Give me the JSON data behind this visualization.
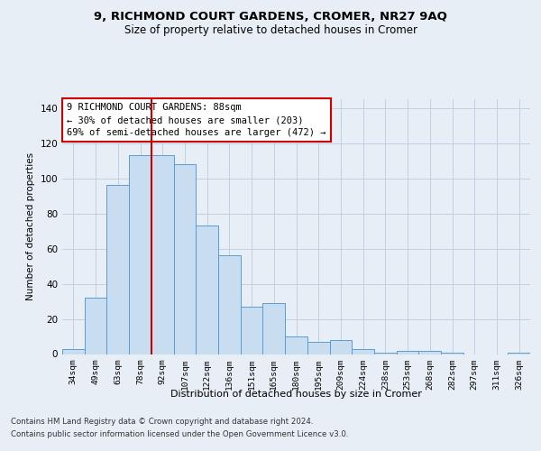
{
  "title1": "9, RICHMOND COURT GARDENS, CROMER, NR27 9AQ",
  "title2": "Size of property relative to detached houses in Cromer",
  "xlabel": "Distribution of detached houses by size in Cromer",
  "ylabel": "Number of detached properties",
  "categories": [
    "34sqm",
    "49sqm",
    "63sqm",
    "78sqm",
    "92sqm",
    "107sqm",
    "122sqm",
    "136sqm",
    "151sqm",
    "165sqm",
    "180sqm",
    "195sqm",
    "209sqm",
    "224sqm",
    "238sqm",
    "253sqm",
    "268sqm",
    "282sqm",
    "297sqm",
    "311sqm",
    "326sqm"
  ],
  "values": [
    3,
    32,
    96,
    113,
    113,
    108,
    73,
    56,
    27,
    29,
    10,
    7,
    8,
    3,
    1,
    2,
    2,
    1,
    0,
    0,
    1
  ],
  "bar_color": "#c8ddf0",
  "bar_edge_color": "#5b9bd5",
  "vline_color": "#cc0000",
  "ylim": [
    0,
    145
  ],
  "yticks": [
    0,
    20,
    40,
    60,
    80,
    100,
    120,
    140
  ],
  "annotation_text": "9 RICHMOND COURT GARDENS: 88sqm\n← 30% of detached houses are smaller (203)\n69% of semi-detached houses are larger (472) →",
  "annotation_box_color": "#ffffff",
  "annotation_box_edge": "#cc0000",
  "footer1": "Contains HM Land Registry data © Crown copyright and database right 2024.",
  "footer2": "Contains public sector information licensed under the Open Government Licence v3.0.",
  "background_color": "#e8eef5",
  "grid_color": "#b8cce0"
}
